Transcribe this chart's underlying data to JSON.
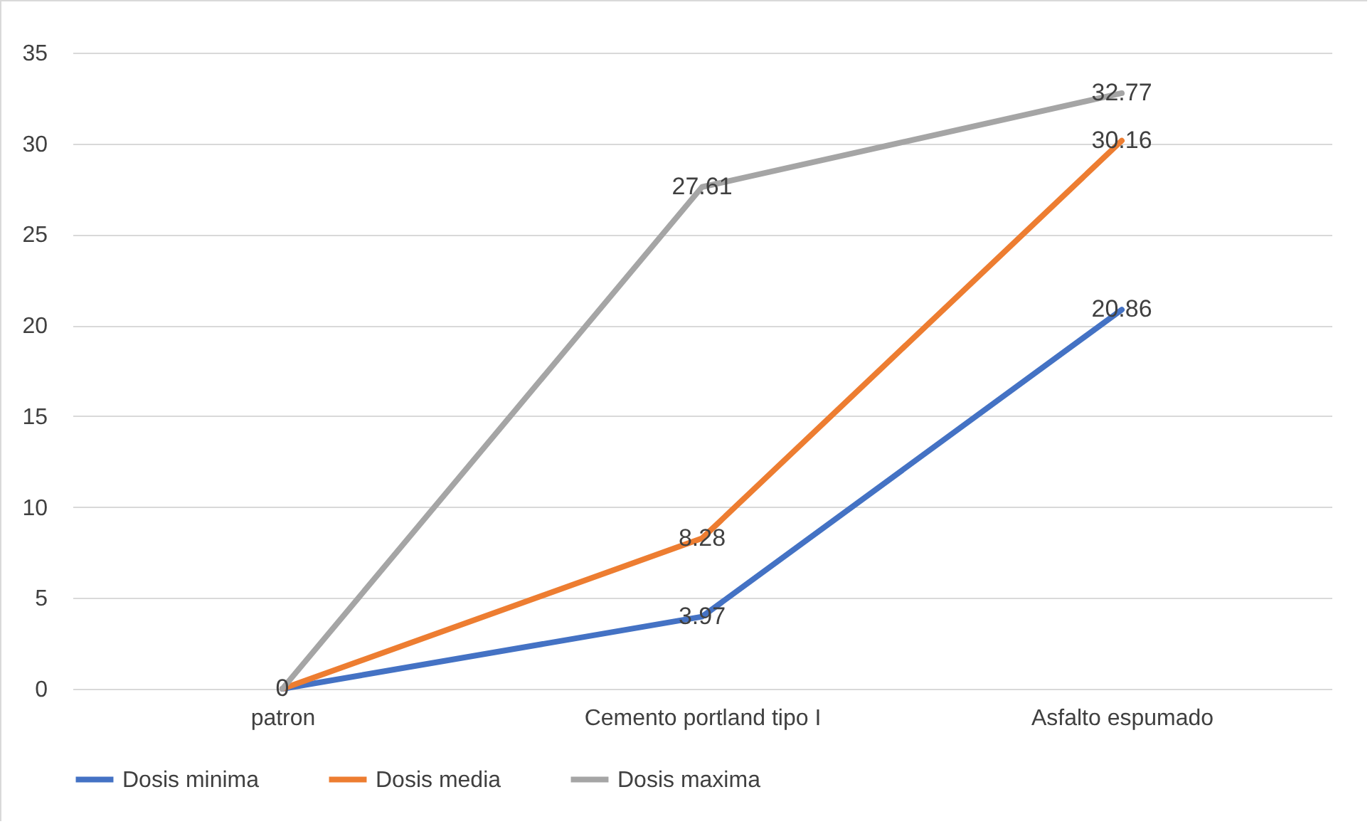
{
  "chart_data": {
    "type": "line",
    "categories": [
      "patron",
      "Cemento portland tipo I",
      "Asfalto espumado"
    ],
    "series": [
      {
        "name": "Dosis minima",
        "color": "#4472c4",
        "values": [
          0,
          3.97,
          20.86
        ],
        "value_labels": [
          "0",
          "3.97",
          "20.86"
        ]
      },
      {
        "name": "Dosis media",
        "color": "#ed7d31",
        "values": [
          0,
          8.28,
          30.16
        ],
        "value_labels": [
          null,
          "8.28",
          "30.16"
        ]
      },
      {
        "name": "Dosis maxima",
        "color": "#a5a5a5",
        "values": [
          0,
          27.61,
          32.77
        ],
        "value_labels": [
          null,
          "27.61",
          "32.77"
        ]
      }
    ],
    "ylim": [
      0,
      35
    ],
    "yticks": [
      0,
      5,
      10,
      15,
      20,
      25,
      30,
      35
    ],
    "grid": "y",
    "legend": "bottom"
  }
}
